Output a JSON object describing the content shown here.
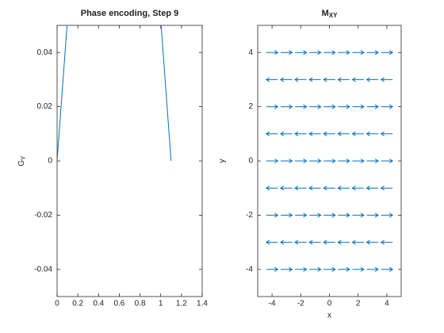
{
  "chart_data": [
    {
      "type": "line",
      "title": "Phase encoding, Step 9",
      "ylabel": "G",
      "ylabel_sub": "Y",
      "x": [
        0,
        0.1,
        1.0,
        1.1
      ],
      "values": [
        0,
        0.052,
        0.052,
        0
      ],
      "color": "#0072bd",
      "xlim": [
        0,
        1.4
      ],
      "xticks": [
        0,
        0.2,
        0.4,
        0.6,
        0.8,
        1,
        1.2,
        1.4
      ],
      "ylim": [
        -0.05,
        0.05
      ],
      "yticks": [
        -0.04,
        -0.02,
        0,
        0.02,
        0.04
      ]
    },
    {
      "type": "quiver",
      "title": "M",
      "title_sub": "XY",
      "xlabel": "x",
      "ylabel": "y",
      "x": [
        -4,
        -3,
        -2,
        -1,
        0,
        1,
        2,
        3,
        4
      ],
      "y": [
        -4,
        -3,
        -2,
        -1,
        0,
        1,
        2,
        3,
        4
      ],
      "u": [
        1,
        -1,
        1,
        -1,
        1,
        -1,
        1,
        -1,
        1
      ],
      "color": "#0072bd",
      "xlim": [
        -5,
        5
      ],
      "xticks": [
        -4,
        -2,
        0,
        2,
        4
      ],
      "ylim": [
        -5,
        5
      ],
      "yticks": [
        -4,
        -2,
        0,
        2,
        4
      ]
    }
  ]
}
